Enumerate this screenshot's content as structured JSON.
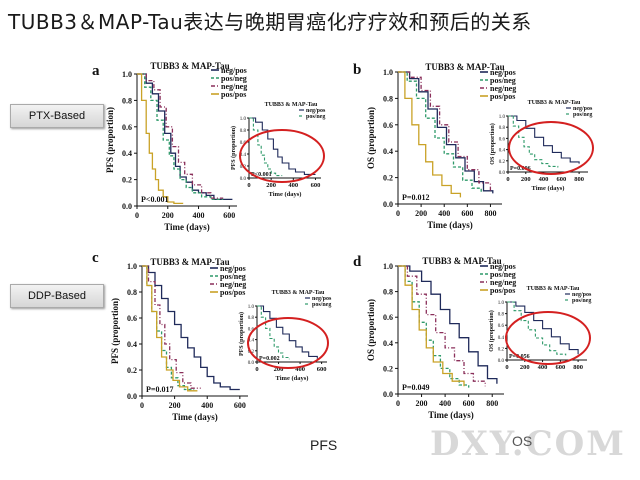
{
  "slide": {
    "title": "TUBB3＆MAP-Tau表达与晚期胃癌化疗疗效和预后的关系",
    "side_labels": [
      "PTX-Based",
      "DDP-Based"
    ],
    "footer_left": "PFS",
    "footer_right": "OS",
    "watermark": "DXY.COM"
  },
  "colors": {
    "neg_pos": "#1f2a5a",
    "pos_neg": "#2f9a6a",
    "neg_neg": "#8a2f5a",
    "pos_pos": "#c9a227",
    "highlight": "#d42020"
  },
  "chart_data": [
    {
      "type": "line",
      "panel": "a",
      "title": "TUBB3 & MAP-Tau",
      "xlabel": "Time (days)",
      "ylabel": "PFS (proportion)",
      "xticks": [
        "0",
        "200",
        "400",
        "600"
      ],
      "yticks": [
        "0.0",
        "0.2",
        "0.4",
        "0.6",
        "0.8",
        "1.0"
      ],
      "xlim": [
        0,
        650
      ],
      "ylim": [
        0,
        1
      ],
      "pvalue": "P<0.001",
      "series": [
        {
          "name": "neg/pos",
          "x": [
            0,
            60,
            100,
            140,
            180,
            220,
            250,
            280,
            320,
            360,
            400,
            450,
            500,
            560,
            620
          ],
          "y": [
            1,
            0.93,
            0.85,
            0.72,
            0.55,
            0.4,
            0.3,
            0.22,
            0.18,
            0.12,
            0.1,
            0.08,
            0.05,
            0.05,
            0.05
          ]
        },
        {
          "name": "pos/neg",
          "x": [
            0,
            50,
            90,
            130,
            170,
            210,
            240,
            280,
            320,
            360,
            420,
            480,
            560
          ],
          "y": [
            1,
            0.9,
            0.8,
            0.65,
            0.5,
            0.38,
            0.28,
            0.2,
            0.14,
            0.1,
            0.07,
            0.05,
            0.05
          ]
        },
        {
          "name": "neg/neg",
          "x": [
            0,
            60,
            110,
            150,
            190,
            230,
            270,
            310,
            360,
            420,
            480,
            560
          ],
          "y": [
            1,
            0.95,
            0.88,
            0.75,
            0.6,
            0.45,
            0.33,
            0.24,
            0.16,
            0.1,
            0.06,
            0.06
          ]
        },
        {
          "name": "pos/pos",
          "x": [
            0,
            30,
            60,
            80,
            100,
            120,
            140,
            170,
            200,
            240,
            300
          ],
          "y": [
            1,
            0.8,
            0.55,
            0.4,
            0.28,
            0.2,
            0.12,
            0.07,
            0.03,
            0.02,
            0.02
          ]
        }
      ],
      "inset": {
        "title": "TUBB3 & MAP-Tau",
        "legend": [
          "neg/pos",
          "pos/neg"
        ],
        "xlabel": "Time (days)",
        "ylabel": "PFS (proportion)",
        "xticks": [
          "0",
          "200",
          "400",
          "600"
        ],
        "yticks": [
          "0.0",
          "0.2",
          "0.4",
          "0.6",
          "0.8",
          "1.0"
        ],
        "xlim": [
          0,
          650
        ],
        "ylim": [
          0,
          1
        ],
        "pvalue": "P<0.001",
        "series": [
          {
            "name": "neg/pos",
            "x": [
              0,
              60,
              120,
              170,
              220,
              260,
              300,
              360,
              420,
              500,
              600
            ],
            "y": [
              1,
              0.93,
              0.8,
              0.65,
              0.48,
              0.35,
              0.25,
              0.15,
              0.1,
              0.06,
              0.06
            ]
          },
          {
            "name": "pos/neg",
            "x": [
              0,
              40,
              80,
              110,
              140,
              170,
              200,
              240,
              300
            ],
            "y": [
              1,
              0.8,
              0.55,
              0.38,
              0.25,
              0.15,
              0.08,
              0.04,
              0.04
            ]
          }
        ]
      }
    },
    {
      "type": "line",
      "panel": "b",
      "title": "TUBB3 & MAP-Tau",
      "xlabel": "Time (days)",
      "ylabel": "OS (proportion)",
      "xticks": [
        "0",
        "200",
        "400",
        "600",
        "800"
      ],
      "yticks": [
        "0.0",
        "0.2",
        "0.4",
        "0.6",
        "0.8",
        "1.0"
      ],
      "xlim": [
        0,
        900
      ],
      "ylim": [
        0,
        1
      ],
      "pvalue": "P=0.012",
      "series": [
        {
          "name": "neg/pos",
          "x": [
            0,
            100,
            180,
            260,
            340,
            420,
            500,
            580,
            660,
            740,
            820
          ],
          "y": [
            1,
            0.95,
            0.85,
            0.72,
            0.58,
            0.45,
            0.35,
            0.25,
            0.17,
            0.1,
            0.08
          ]
        },
        {
          "name": "pos/neg",
          "x": [
            0,
            80,
            160,
            240,
            320,
            400,
            480,
            560,
            640,
            720
          ],
          "y": [
            1,
            0.93,
            0.8,
            0.65,
            0.5,
            0.38,
            0.28,
            0.18,
            0.12,
            0.08
          ]
        },
        {
          "name": "neg/neg",
          "x": [
            0,
            100,
            200,
            280,
            360,
            440,
            520,
            600,
            700,
            800
          ],
          "y": [
            1,
            0.96,
            0.86,
            0.74,
            0.6,
            0.47,
            0.36,
            0.26,
            0.16,
            0.1
          ]
        },
        {
          "name": "pos/pos",
          "x": [
            0,
            60,
            120,
            180,
            240,
            300,
            380,
            460,
            540
          ],
          "y": [
            1,
            0.8,
            0.6,
            0.45,
            0.32,
            0.22,
            0.14,
            0.08,
            0.05
          ]
        }
      ],
      "inset": {
        "title": "TUBB3 & MAP-Tau",
        "legend": [
          "neg/pos",
          "pos/neg"
        ],
        "xlabel": "Time (days)",
        "ylabel": "OS (proportion)",
        "xticks": [
          "0",
          "200",
          "400",
          "600",
          "800"
        ],
        "yticks": [
          "0.0",
          "0.2",
          "0.4",
          "0.6",
          "0.8",
          "1.0"
        ],
        "xlim": [
          0,
          900
        ],
        "ylim": [
          0,
          1
        ],
        "pvalue": "P=0.006",
        "series": [
          {
            "name": "neg/pos",
            "x": [
              0,
              100,
              200,
              300,
              400,
              500,
              600,
              700,
              800
            ],
            "y": [
              1,
              0.92,
              0.78,
              0.62,
              0.47,
              0.35,
              0.25,
              0.18,
              0.15
            ]
          },
          {
            "name": "pos/neg",
            "x": [
              0,
              60,
              120,
              180,
              240,
              300,
              380,
              460,
              560
            ],
            "y": [
              1,
              0.82,
              0.62,
              0.45,
              0.32,
              0.22,
              0.15,
              0.1,
              0.08
            ]
          }
        ]
      }
    },
    {
      "type": "line",
      "panel": "c",
      "title": "TUBB3 & MAP-Tau",
      "xlabel": "Time (days)",
      "ylabel": "PFS (proportion)",
      "xticks": [
        "0",
        "200",
        "400",
        "600"
      ],
      "yticks": [
        "0.0",
        "0.2",
        "0.4",
        "0.6",
        "0.8",
        "1.0"
      ],
      "xlim": [
        0,
        650
      ],
      "ylim": [
        0,
        1
      ],
      "pvalue": "P=0.017",
      "series": [
        {
          "name": "neg/pos",
          "x": [
            0,
            40,
            80,
            120,
            160,
            200,
            240,
            280,
            320,
            360,
            400,
            440,
            480,
            540,
            600
          ],
          "y": [
            1,
            0.95,
            0.85,
            0.75,
            0.65,
            0.55,
            0.45,
            0.37,
            0.3,
            0.22,
            0.15,
            0.1,
            0.07,
            0.05,
            0.05
          ]
        },
        {
          "name": "pos/neg",
          "x": [
            0,
            30,
            60,
            90,
            120,
            150,
            180,
            220,
            260,
            320
          ],
          "y": [
            1,
            0.85,
            0.65,
            0.5,
            0.35,
            0.22,
            0.14,
            0.08,
            0.05,
            0.05
          ]
        },
        {
          "name": "neg/neg",
          "x": [
            0,
            40,
            80,
            110,
            140,
            170,
            210,
            250,
            300,
            360
          ],
          "y": [
            1,
            0.88,
            0.7,
            0.55,
            0.4,
            0.28,
            0.18,
            0.1,
            0.06,
            0.06
          ]
        },
        {
          "name": "pos/pos",
          "x": [
            0,
            30,
            60,
            90,
            120,
            150,
            190,
            230,
            280,
            340
          ],
          "y": [
            1,
            0.85,
            0.65,
            0.45,
            0.3,
            0.2,
            0.12,
            0.07,
            0.04,
            0.04
          ]
        }
      ],
      "inset": {
        "title": "TUBB3 & MAP-Tau",
        "legend": [
          "neg/pos",
          "pos/neg"
        ],
        "xlabel": "Time (days)",
        "ylabel": "PFS (proportion)",
        "xticks": [
          "0",
          "200",
          "400",
          "600"
        ],
        "yticks": [
          "0.0",
          "0.2",
          "0.4",
          "0.6",
          "0.8",
          "1.0"
        ],
        "xlim": [
          0,
          650
        ],
        "ylim": [
          0,
          1
        ],
        "pvalue": "P=0.002",
        "series": [
          {
            "name": "neg/pos",
            "x": [
              0,
              60,
              120,
              180,
              240,
              300,
              360,
              420,
              480,
              560
            ],
            "y": [
              1,
              0.9,
              0.78,
              0.62,
              0.5,
              0.38,
              0.27,
              0.18,
              0.1,
              0.06
            ]
          },
          {
            "name": "pos/neg",
            "x": [
              0,
              40,
              80,
              120,
              160,
              200,
              240,
              300
            ],
            "y": [
              1,
              0.8,
              0.6,
              0.42,
              0.27,
              0.16,
              0.08,
              0.05
            ]
          }
        ]
      }
    },
    {
      "type": "line",
      "panel": "d",
      "title": "TUBB3 & MAP-Tau",
      "xlabel": "Time (days)",
      "ylabel": "OS (proportion)",
      "xticks": [
        "0",
        "200",
        "400",
        "600",
        "800"
      ],
      "yticks": [
        "0.0",
        "0.2",
        "0.4",
        "0.6",
        "0.8",
        "1.0"
      ],
      "xlim": [
        0,
        900
      ],
      "ylim": [
        0,
        1
      ],
      "pvalue": "P=0.049",
      "series": [
        {
          "name": "neg/pos",
          "x": [
            0,
            100,
            200,
            280,
            360,
            440,
            520,
            600,
            680,
            760,
            840
          ],
          "y": [
            1,
            0.96,
            0.88,
            0.78,
            0.66,
            0.55,
            0.44,
            0.33,
            0.22,
            0.12,
            0.08
          ]
        },
        {
          "name": "pos/neg",
          "x": [
            0,
            60,
            120,
            180,
            240,
            300,
            360,
            440,
            520,
            600
          ],
          "y": [
            1,
            0.88,
            0.72,
            0.56,
            0.42,
            0.3,
            0.2,
            0.12,
            0.07,
            0.05
          ]
        },
        {
          "name": "neg/neg",
          "x": [
            0,
            80,
            160,
            240,
            320,
            400,
            480,
            560,
            640,
            740
          ],
          "y": [
            1,
            0.92,
            0.78,
            0.62,
            0.48,
            0.36,
            0.26,
            0.16,
            0.1,
            0.06
          ]
        },
        {
          "name": "pos/pos",
          "x": [
            0,
            60,
            120,
            180,
            240,
            300,
            380,
            460,
            560
          ],
          "y": [
            1,
            0.85,
            0.66,
            0.5,
            0.36,
            0.25,
            0.16,
            0.1,
            0.06
          ]
        }
      ],
      "inset": {
        "title": "TUBB3 & MAP-Tau",
        "legend": [
          "neg/pos",
          "pos/neg"
        ],
        "xlabel": "",
        "ylabel": "OS (proportion)",
        "xticks": [
          "0",
          "200",
          "400",
          "600",
          "800"
        ],
        "yticks": [
          "0.0",
          "0.2",
          "0.4",
          "0.6",
          "0.8",
          "1.0"
        ],
        "xlim": [
          0,
          900
        ],
        "ylim": [
          0,
          1
        ],
        "pvalue": "P=0.056",
        "series": [
          {
            "name": "neg/pos",
            "x": [
              0,
              100,
              200,
              300,
              400,
              500,
              600,
              700,
              800
            ],
            "y": [
              1,
              0.93,
              0.82,
              0.68,
              0.54,
              0.4,
              0.28,
              0.18,
              0.1
            ]
          },
          {
            "name": "pos/neg",
            "x": [
              0,
              80,
              160,
              240,
              320,
              400,
              480,
              560,
              660
            ],
            "y": [
              1,
              0.85,
              0.68,
              0.52,
              0.38,
              0.26,
              0.16,
              0.1,
              0.08
            ]
          }
        ]
      }
    }
  ]
}
